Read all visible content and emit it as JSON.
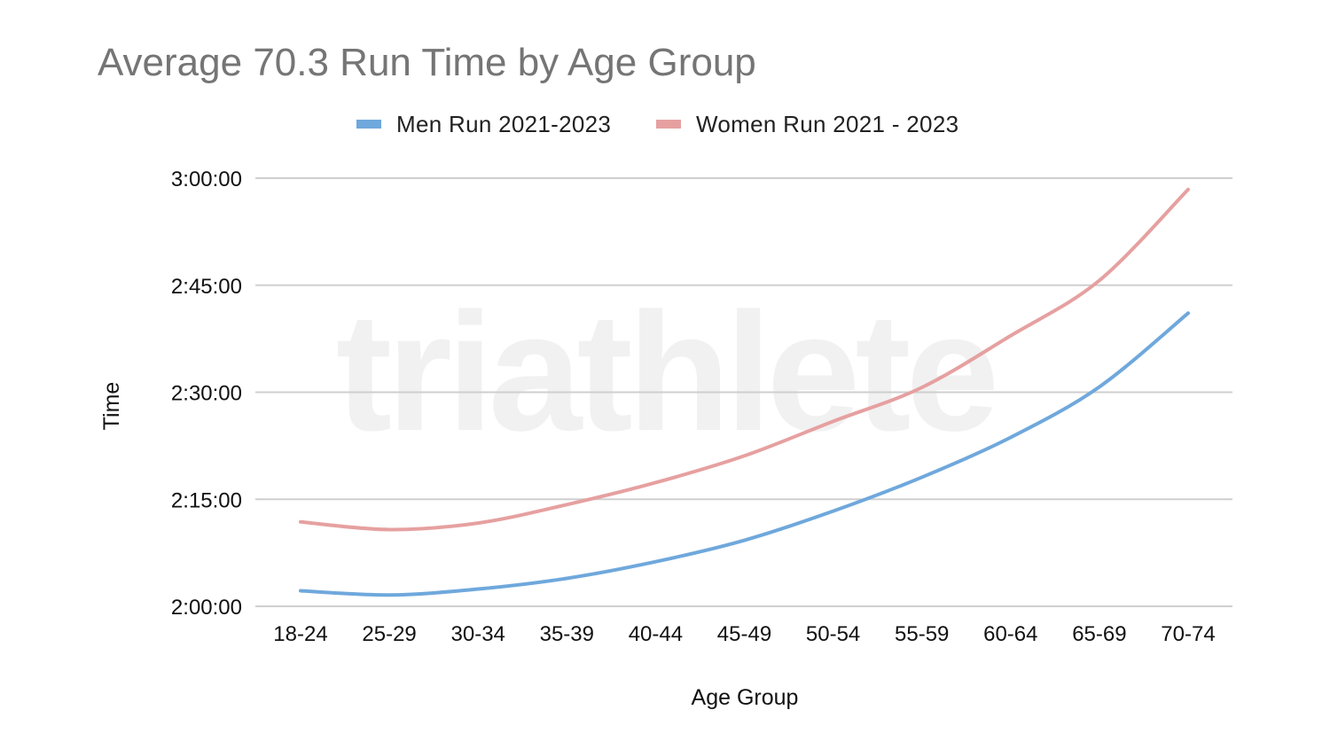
{
  "chart_data": {
    "type": "line",
    "title": "Average 70.3 Run Time by Age Group",
    "xlabel": "Age Group",
    "ylabel": "Time",
    "watermark": "triathlete",
    "categories": [
      "18-24",
      "25-29",
      "30-34",
      "35-39",
      "40-44",
      "45-49",
      "50-54",
      "55-59",
      "60-64",
      "65-69",
      "70-74"
    ],
    "y_ticks": [
      "2:00:00",
      "2:15:00",
      "2:30:00",
      "2:45:00",
      "3:00:00"
    ],
    "ylim": [
      "2:00:00",
      "3:00:00"
    ],
    "grid": true,
    "legend_position": "top-center",
    "series": [
      {
        "name": "Men Run 2021-2023",
        "color": "#6fa8dc",
        "values": [
          "2:02:10",
          "2:01:35",
          "2:02:25",
          "2:03:55",
          "2:06:15",
          "2:09:15",
          "2:13:20",
          "2:18:05",
          "2:23:40",
          "2:30:45",
          "2:41:05"
        ]
      },
      {
        "name": "Women Run 2021 - 2023",
        "color": "#e6a0a0",
        "values": [
          "2:11:50",
          "2:10:45",
          "2:11:40",
          "2:14:15",
          "2:17:20",
          "2:21:05",
          "2:25:55",
          "2:30:40",
          "2:37:55",
          "2:45:40",
          "2:58:25"
        ]
      }
    ]
  }
}
